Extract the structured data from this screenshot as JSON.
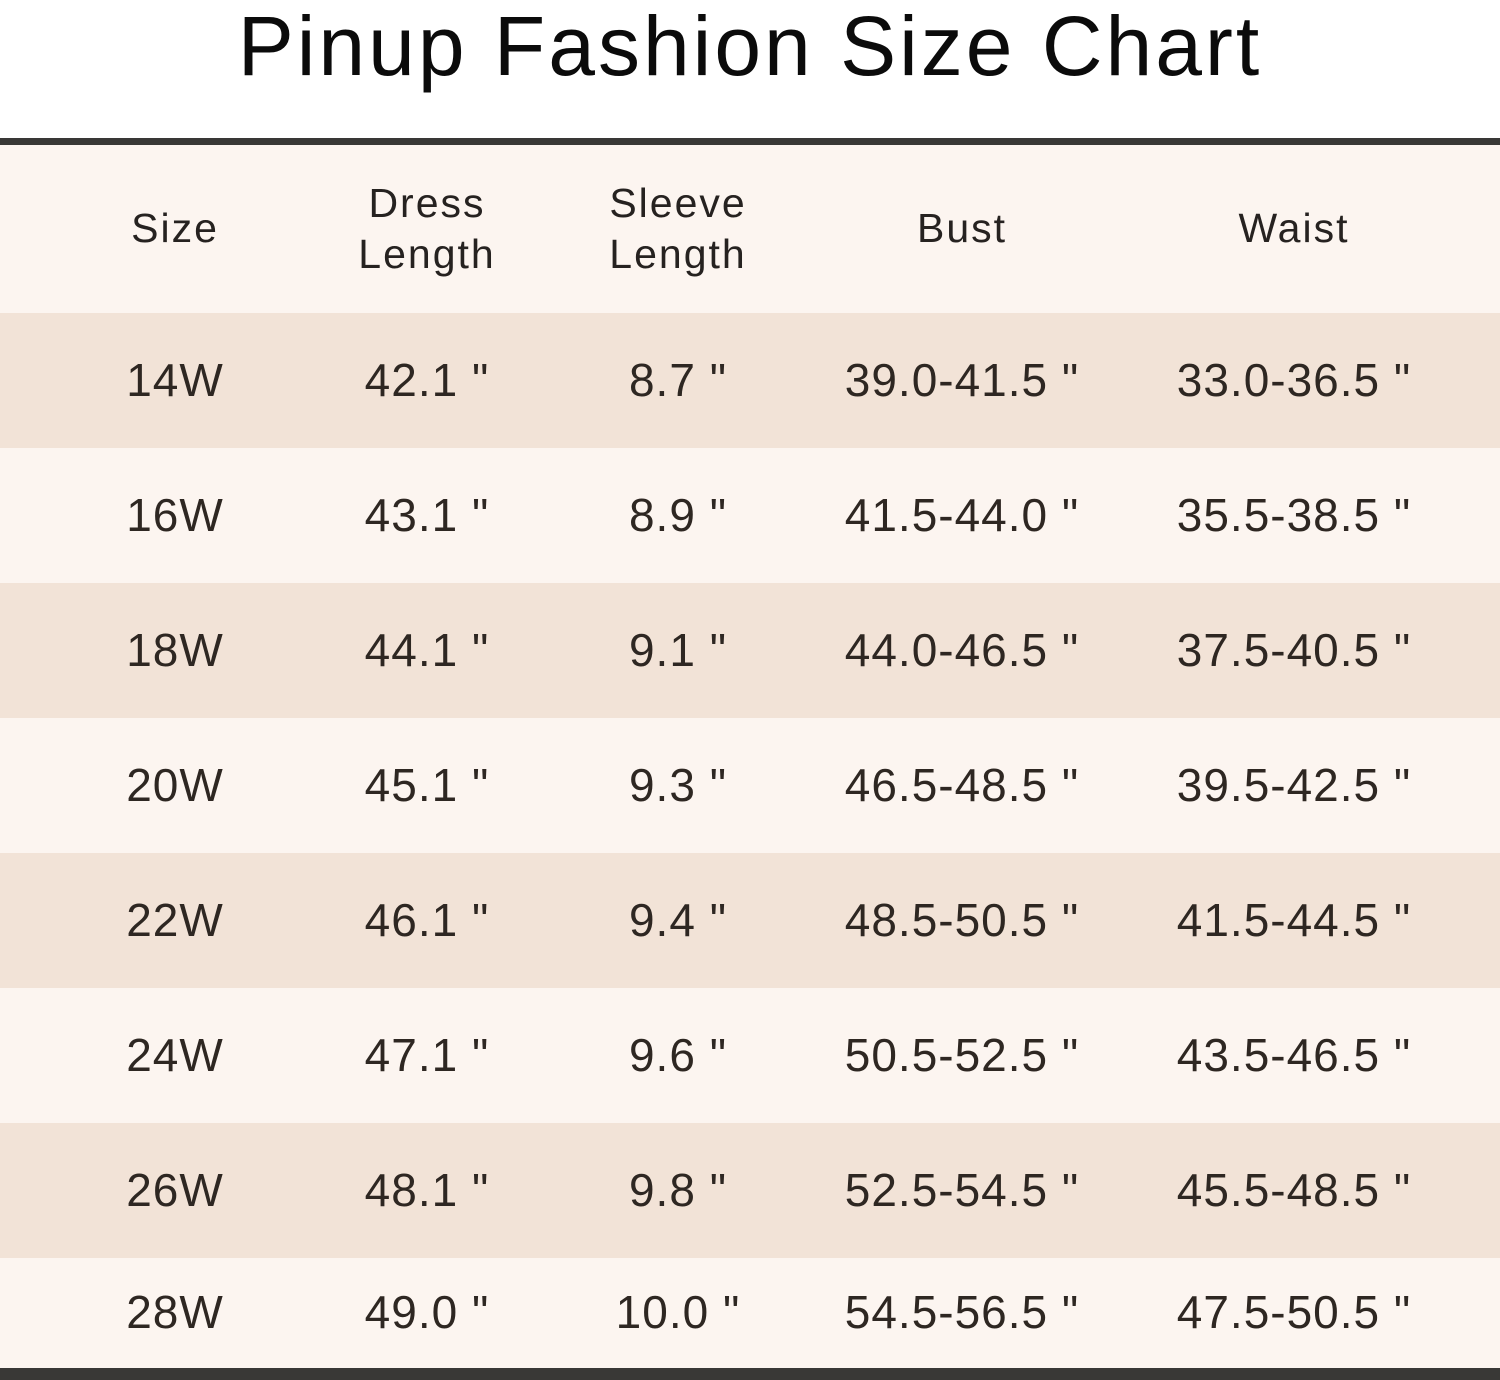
{
  "chart_data": {
    "type": "table",
    "title": "Pinup Fashion Size Chart",
    "columns": [
      "Size",
      "Dress Length",
      "Sleeve Length",
      "Bust",
      "Waist"
    ],
    "rows": [
      [
        "14W",
        "42.1 \"",
        "8.7 \"",
        "39.0-41.5 \"",
        "33.0-36.5 \""
      ],
      [
        "16W",
        "43.1 \"",
        "8.9 \"",
        "41.5-44.0 \"",
        "35.5-38.5 \""
      ],
      [
        "18W",
        "44.1 \"",
        "9.1 \"",
        "44.0-46.5 \"",
        "37.5-40.5 \""
      ],
      [
        "20W",
        "45.1 \"",
        "9.3 \"",
        "46.5-48.5 \"",
        "39.5-42.5 \""
      ],
      [
        "22W",
        "46.1 \"",
        "9.4 \"",
        "48.5-50.5 \"",
        "41.5-44.5 \""
      ],
      [
        "24W",
        "47.1 \"",
        "9.6 \"",
        "50.5-52.5 \"",
        "43.5-46.5 \""
      ],
      [
        "26W",
        "48.1 \"",
        "9.8 \"",
        "52.5-54.5 \"",
        "45.5-48.5 \""
      ],
      [
        "28W",
        "49.0 \"",
        "10.0 \"",
        "54.5-56.5 \"",
        "47.5-50.5 \""
      ]
    ],
    "layout": {
      "legend": "none",
      "grid": "off",
      "row_striping": "alternating, first data row shaded"
    }
  },
  "colors": {
    "background": "#ffffff",
    "title_text": "#0b0b0b",
    "header_text": "#262220",
    "text": "#2e2722",
    "row_dark": "#f2e3d7",
    "row_light": "#fcf5f0",
    "divider": "#393836"
  }
}
